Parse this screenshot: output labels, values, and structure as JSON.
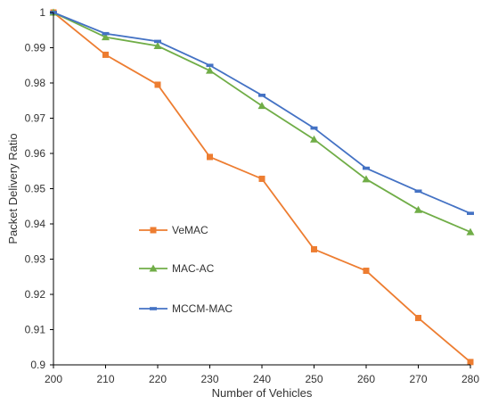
{
  "chart_data": {
    "type": "line",
    "title": "",
    "xlabel": "Number of Vehicles",
    "ylabel": "Packet Delivery Ratio",
    "x": [
      200,
      210,
      220,
      230,
      240,
      250,
      260,
      270,
      280
    ],
    "xlim": [
      200,
      280
    ],
    "ylim": [
      0.9,
      1.0
    ],
    "x_ticks": [
      "200",
      "210",
      "220",
      "230",
      "240",
      "250",
      "260",
      "270",
      "280"
    ],
    "y_ticks": [
      "0.9",
      "0.91",
      "0.92",
      "0.93",
      "0.94",
      "0.95",
      "0.96",
      "0.97",
      "0.98",
      "0.99",
      "1"
    ],
    "grid": false,
    "legend_position": "center-left",
    "series": [
      {
        "name": "VeMAC",
        "marker": "square",
        "color": "#ED7D31",
        "values": [
          1.0,
          0.988,
          0.9795,
          0.959,
          0.9528,
          0.9328,
          0.9267,
          0.9133,
          0.9008
        ]
      },
      {
        "name": "MAC-AC",
        "marker": "triangle",
        "color": "#70AD47",
        "values": [
          1.0,
          0.993,
          0.9905,
          0.9835,
          0.9735,
          0.964,
          0.9527,
          0.944,
          0.9377
        ]
      },
      {
        "name": "MCCM-MAC",
        "marker": "dash",
        "color": "#4472C4",
        "values": [
          1.0,
          0.994,
          0.9918,
          0.985,
          0.9765,
          0.9672,
          0.9558,
          0.9493,
          0.943
        ]
      }
    ]
  }
}
